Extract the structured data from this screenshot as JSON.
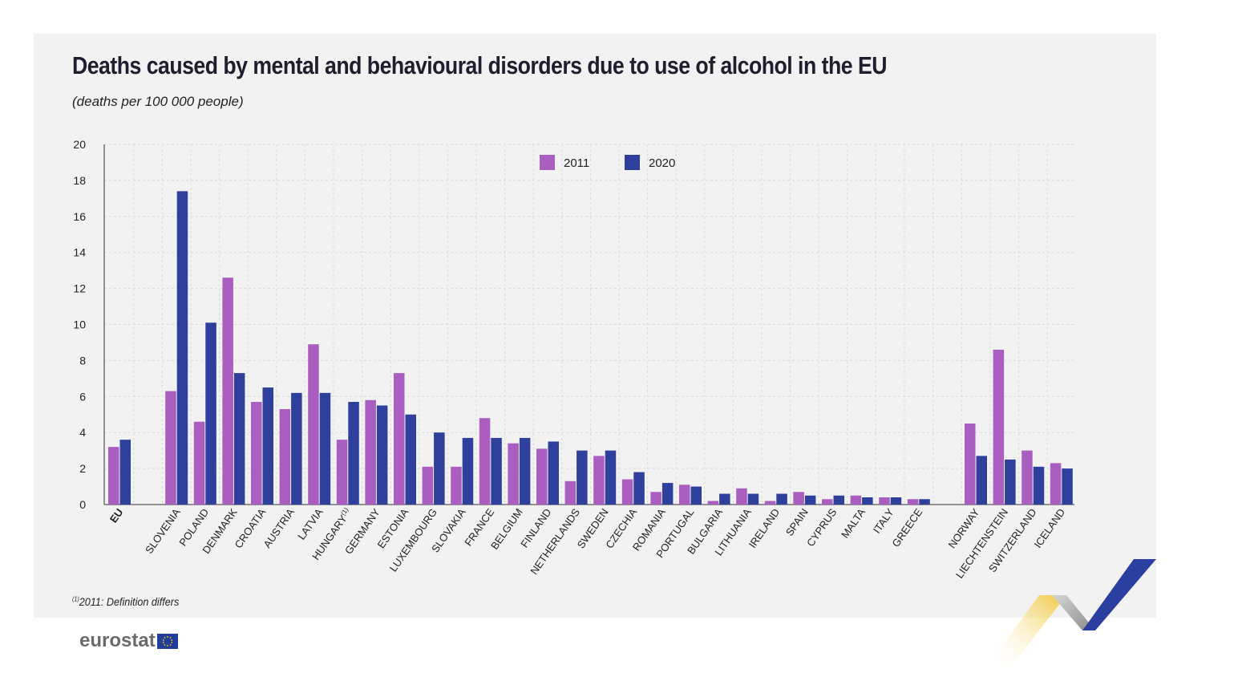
{
  "title": "Deaths caused by mental and behavioural disorders due to use of alcohol in the EU",
  "subtitle": "(deaths per 100 000 people)",
  "footnote_mark": "(1)",
  "footnote_text": "2011: Definition differs",
  "logo": "eurostat",
  "colors": {
    "s2011": "#a95ec0",
    "s2020": "#2e3f9c",
    "panel": "#f2f2f2"
  },
  "chart_data": {
    "type": "bar",
    "title": "Deaths caused by mental and behavioural disorders due to use of alcohol in the EU",
    "subtitle": "(deaths per 100 000 people)",
    "ylim": [
      0,
      20
    ],
    "yticks": [
      0,
      2,
      4,
      6,
      8,
      10,
      12,
      14,
      16,
      18,
      20
    ],
    "grid": true,
    "legend_position": "top-center",
    "categories": [
      "EU",
      "SLOVENIA",
      "POLAND",
      "DENMARK",
      "CROATIA",
      "AUSTRIA",
      "LATVIA",
      "HUNGARY(1)",
      "GERMANY",
      "ESTONIA",
      "LUXEMBOURG",
      "SLOVAKIA",
      "FRANCE",
      "BELGIUM",
      "FINLAND",
      "NETHERLANDS",
      "SWEDEN",
      "CZECHIA",
      "ROMANIA",
      "PORTUGAL",
      "BULGARIA",
      "LITHUANIA",
      "IRELAND",
      "SPAIN",
      "CYPRUS",
      "MALTA",
      "ITALY",
      "GREECE",
      "NORWAY",
      "LIECHTENSTEIN",
      "SWITZERLAND",
      "ICELAND"
    ],
    "series": [
      {
        "name": "2011",
        "values": [
          3.2,
          6.3,
          4.6,
          12.6,
          5.7,
          5.3,
          8.9,
          3.6,
          5.8,
          7.3,
          2.1,
          2.1,
          4.8,
          3.4,
          3.1,
          1.3,
          2.7,
          1.4,
          0.7,
          1.1,
          0.2,
          0.9,
          0.2,
          0.7,
          0.3,
          0.5,
          0.4,
          0.3,
          4.5,
          8.6,
          3.0,
          2.3
        ]
      },
      {
        "name": "2020",
        "values": [
          3.6,
          17.4,
          10.1,
          7.3,
          6.5,
          6.2,
          6.2,
          5.7,
          5.5,
          5.0,
          4.0,
          3.7,
          3.7,
          3.7,
          3.5,
          3.0,
          3.0,
          1.8,
          1.2,
          1.0,
          0.6,
          0.6,
          0.6,
          0.5,
          0.5,
          0.4,
          0.4,
          0.3,
          2.7,
          2.5,
          2.1,
          2.0
        ]
      }
    ]
  }
}
